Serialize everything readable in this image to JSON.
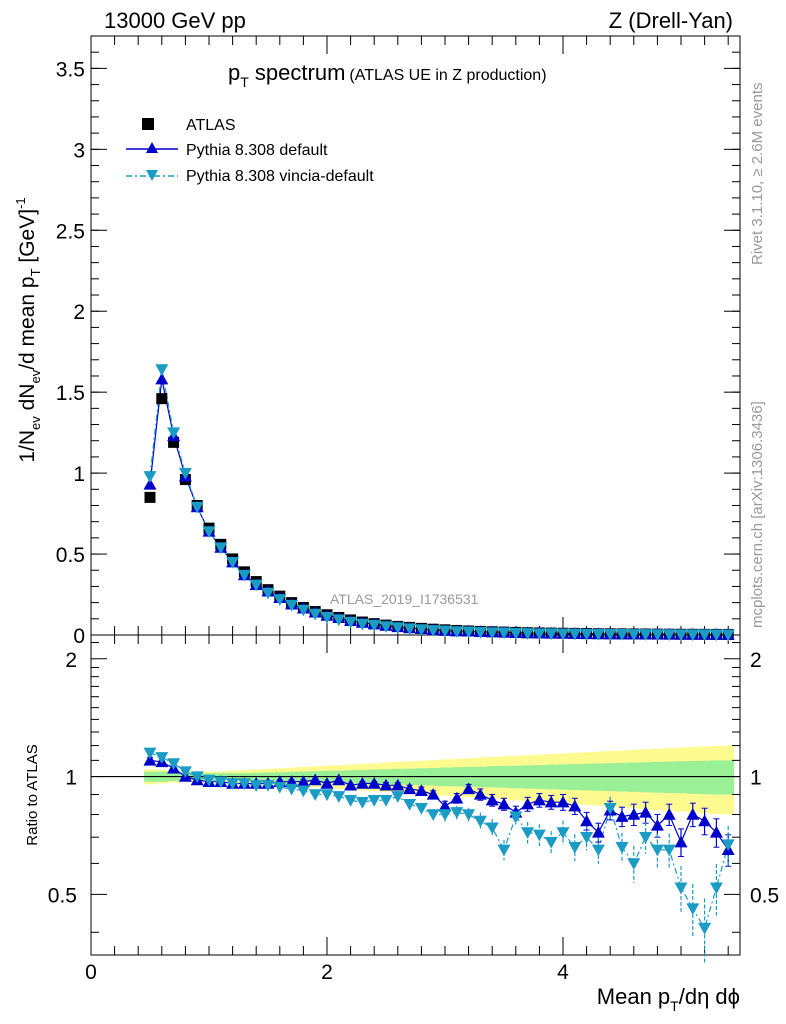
{
  "header": {
    "left": "13000 GeV pp",
    "right": "Z (Drell-Yan)"
  },
  "plot_title": {
    "main": "p",
    "main_sub": "T",
    "main_rest": " spectrum",
    "detail": "(ATLAS UE in Z production)"
  },
  "side_labels": {
    "rivet": "Rivet 3.1.10, ≥ 2.6M events",
    "mcplots": "mcplots.cern.ch [arXiv:1306.3436]"
  },
  "watermark": "ATLAS_2019_I1736531",
  "colors": {
    "atlas": "#000000",
    "pythia_default": "#0000cc",
    "vincia": "#1a9cc4",
    "band_inner": "#99f097",
    "band_outer": "#fdfa90"
  },
  "chart_data": [
    {
      "type": "scatter",
      "panel": "main",
      "ylabel": "1/N_ev dN_ev/d mean p_T [GeV]^-1",
      "xlim": [
        0,
        5.5
      ],
      "ylim": [
        0,
        3.7
      ],
      "yticks": [
        "0",
        "0.5",
        "1",
        "1.5",
        "2",
        "2.5",
        "3",
        "3.5"
      ],
      "legend_position": "top-left",
      "x": [
        0.5,
        0.6,
        0.7,
        0.8,
        0.9,
        1.0,
        1.1,
        1.2,
        1.3,
        1.4,
        1.5,
        1.6,
        1.7,
        1.8,
        1.9,
        2.0,
        2.1,
        2.2,
        2.3,
        2.4,
        2.5,
        2.6,
        2.7,
        2.8,
        2.9,
        3.0,
        3.1,
        3.2,
        3.3,
        3.4,
        3.5,
        3.6,
        3.7,
        3.8,
        3.9,
        4.0,
        4.1,
        4.2,
        4.3,
        4.4,
        4.5,
        4.6,
        4.7,
        4.8,
        4.9,
        5.0,
        5.1,
        5.2,
        5.3,
        5.4
      ],
      "series": [
        {
          "name": "ATLAS",
          "marker": "square",
          "values": [
            0.85,
            1.46,
            1.19,
            0.96,
            0.8,
            0.66,
            0.56,
            0.47,
            0.39,
            0.33,
            0.28,
            0.24,
            0.2,
            0.17,
            0.145,
            0.125,
            0.108,
            0.093,
            0.08,
            0.07,
            0.061,
            0.053,
            0.047,
            0.041,
            0.036,
            0.032,
            0.028,
            0.025,
            0.022,
            0.02,
            0.018,
            0.016,
            0.014,
            0.013,
            0.012,
            0.011,
            0.01,
            0.009,
            0.008,
            0.0075,
            0.007,
            0.0065,
            0.006,
            0.0055,
            0.005,
            0.0047,
            0.0044,
            0.0041,
            0.0038,
            0.0036
          ]
        },
        {
          "name": "Pythia 8.308 default",
          "marker": "triangle-up",
          "values": [
            0.93,
            1.58,
            1.23,
            0.98,
            0.79,
            0.64,
            0.54,
            0.45,
            0.37,
            0.31,
            0.27,
            0.23,
            0.19,
            0.165,
            0.14,
            0.12,
            0.106,
            0.088,
            0.077,
            0.067,
            0.058,
            0.05,
            0.043,
            0.038,
            0.032,
            0.027,
            0.024,
            0.023,
            0.02,
            0.018,
            0.016,
            0.014,
            0.012,
            0.011,
            0.01,
            0.0095,
            0.0085,
            0.007,
            0.0065,
            0.006,
            0.0056,
            0.0052,
            0.0048,
            0.0044,
            0.004,
            0.0038,
            0.0036,
            0.0033,
            0.003,
            0.0026
          ]
        },
        {
          "name": "Pythia 8.308 vincia-default",
          "marker": "triangle-down",
          "values": [
            0.98,
            1.64,
            1.25,
            1.0,
            0.79,
            0.64,
            0.54,
            0.45,
            0.37,
            0.31,
            0.26,
            0.22,
            0.185,
            0.155,
            0.13,
            0.11,
            0.095,
            0.08,
            0.068,
            0.061,
            0.053,
            0.047,
            0.04,
            0.034,
            0.029,
            0.026,
            0.022,
            0.02,
            0.017,
            0.015,
            0.014,
            0.012,
            0.01,
            0.009,
            0.0085,
            0.008,
            0.007,
            0.006,
            0.0055,
            0.0052,
            0.0048,
            0.0044,
            0.004,
            0.0036,
            0.0032,
            0.0028,
            0.0026,
            0.0024,
            0.0022,
            0.0019
          ]
        }
      ]
    },
    {
      "type": "scatter",
      "panel": "ratio",
      "ylabel": "Ratio to ATLAS",
      "xlabel": "Mean p_T/dη dφ",
      "xlim": [
        0,
        5.5
      ],
      "ylim": [
        0.35,
        2.3
      ],
      "xticks": [
        "0",
        "2",
        "4"
      ],
      "yticks": [
        "0.5",
        "1",
        "2"
      ],
      "x": [
        0.5,
        0.6,
        0.7,
        0.8,
        0.9,
        1.0,
        1.1,
        1.2,
        1.3,
        1.4,
        1.5,
        1.6,
        1.7,
        1.8,
        1.9,
        2.0,
        2.1,
        2.2,
        2.3,
        2.4,
        2.5,
        2.6,
        2.7,
        2.8,
        2.9,
        3.0,
        3.1,
        3.2,
        3.3,
        3.4,
        3.5,
        3.6,
        3.7,
        3.8,
        3.9,
        4.0,
        4.1,
        4.2,
        4.3,
        4.4,
        4.5,
        4.6,
        4.7,
        4.8,
        4.9,
        5.0,
        5.1,
        5.2,
        5.3,
        5.4
      ],
      "band_inner_halfwidth": [
        0.03,
        0.03,
        0.025,
        0.02,
        0.02,
        0.02,
        0.02,
        0.02,
        0.02,
        0.022,
        0.024,
        0.026,
        0.028,
        0.03,
        0.032,
        0.034,
        0.036,
        0.038,
        0.04,
        0.042,
        0.044,
        0.046,
        0.048,
        0.05,
        0.052,
        0.054,
        0.056,
        0.058,
        0.06,
        0.062,
        0.064,
        0.066,
        0.068,
        0.07,
        0.072,
        0.074,
        0.076,
        0.078,
        0.08,
        0.082,
        0.084,
        0.086,
        0.088,
        0.09,
        0.092,
        0.094,
        0.096,
        0.098,
        0.1,
        0.1
      ],
      "band_outer_halfwidth": [
        0.045,
        0.04,
        0.035,
        0.03,
        0.03,
        0.03,
        0.03,
        0.035,
        0.038,
        0.042,
        0.046,
        0.05,
        0.054,
        0.058,
        0.062,
        0.066,
        0.07,
        0.074,
        0.078,
        0.082,
        0.086,
        0.09,
        0.094,
        0.098,
        0.102,
        0.106,
        0.11,
        0.114,
        0.118,
        0.122,
        0.126,
        0.13,
        0.134,
        0.138,
        0.142,
        0.146,
        0.15,
        0.154,
        0.158,
        0.162,
        0.166,
        0.17,
        0.174,
        0.178,
        0.182,
        0.186,
        0.19,
        0.194,
        0.198,
        0.2
      ],
      "series": [
        {
          "name": "Pythia 8.308 default",
          "marker": "triangle-up",
          "values": [
            1.1,
            1.09,
            1.05,
            1.0,
            0.98,
            0.97,
            0.97,
            0.96,
            0.96,
            0.96,
            0.96,
            0.97,
            0.97,
            0.97,
            0.98,
            0.96,
            0.98,
            0.95,
            0.96,
            0.96,
            0.95,
            0.95,
            0.93,
            0.92,
            0.9,
            0.84,
            0.88,
            0.93,
            0.9,
            0.87,
            0.85,
            0.81,
            0.85,
            0.87,
            0.86,
            0.86,
            0.84,
            0.77,
            0.72,
            0.82,
            0.79,
            0.8,
            0.81,
            0.75,
            0.8,
            0.68,
            0.8,
            0.77,
            0.72,
            0.65
          ],
          "errors": [
            0.02,
            0.02,
            0.02,
            0.01,
            0.01,
            0.01,
            0.01,
            0.01,
            0.01,
            0.01,
            0.01,
            0.01,
            0.01,
            0.01,
            0.01,
            0.01,
            0.01,
            0.01,
            0.01,
            0.01,
            0.015,
            0.015,
            0.02,
            0.02,
            0.02,
            0.025,
            0.025,
            0.025,
            0.03,
            0.03,
            0.03,
            0.03,
            0.035,
            0.035,
            0.035,
            0.04,
            0.04,
            0.04,
            0.04,
            0.045,
            0.045,
            0.05,
            0.05,
            0.05,
            0.05,
            0.055,
            0.055,
            0.06,
            0.06,
            0.06
          ]
        },
        {
          "name": "Pythia 8.308 vincia-default",
          "marker": "triangle-down",
          "values": [
            1.15,
            1.12,
            1.08,
            1.03,
            1.0,
            0.98,
            0.97,
            0.96,
            0.96,
            0.95,
            0.95,
            0.94,
            0.93,
            0.92,
            0.9,
            0.9,
            0.89,
            0.87,
            0.86,
            0.87,
            0.87,
            0.89,
            0.85,
            0.83,
            0.8,
            0.8,
            0.81,
            0.8,
            0.77,
            0.74,
            0.65,
            0.79,
            0.72,
            0.71,
            0.68,
            0.72,
            0.66,
            0.7,
            0.65,
            0.83,
            0.66,
            0.6,
            0.7,
            0.65,
            0.65,
            0.52,
            0.46,
            0.41,
            0.52,
            0.67
          ]
        }
      ]
    }
  ]
}
